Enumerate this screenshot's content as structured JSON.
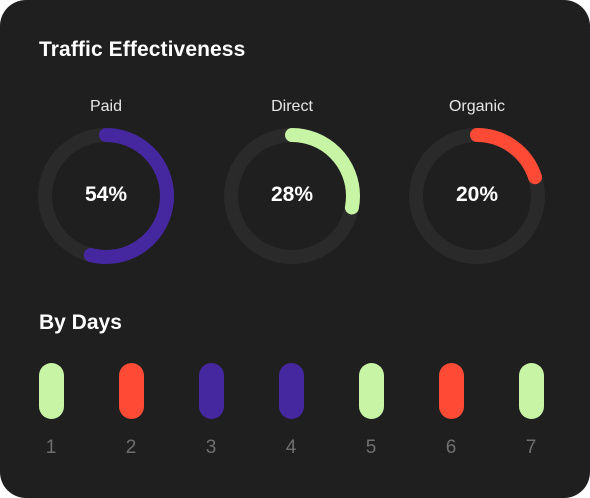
{
  "title": "Traffic Effectiveness",
  "colors": {
    "track": "#2a2a2a",
    "paid": "#4527a0",
    "direct": "#c8f5a5",
    "organic": "#ff4a36"
  },
  "gauges": [
    {
      "label": "Paid",
      "value_text": "54%",
      "value": 54,
      "color": "#4527a0"
    },
    {
      "label": "Direct",
      "value_text": "28%",
      "value": 28,
      "color": "#c8f5a5"
    },
    {
      "label": "Organic",
      "value_text": "20%",
      "value": 20,
      "color": "#ff4a36"
    }
  ],
  "by_days": {
    "title": "By Days",
    "days": [
      {
        "label": "1",
        "color": "#c8f5a5"
      },
      {
        "label": "2",
        "color": "#ff4a36"
      },
      {
        "label": "3",
        "color": "#4527a0"
      },
      {
        "label": "4",
        "color": "#4527a0"
      },
      {
        "label": "5",
        "color": "#c8f5a5"
      },
      {
        "label": "6",
        "color": "#ff4a36"
      },
      {
        "label": "7",
        "color": "#c8f5a5"
      }
    ]
  }
}
